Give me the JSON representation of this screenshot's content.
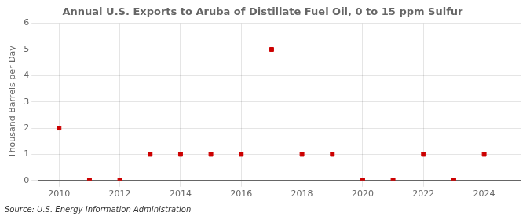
{
  "chart_data": {
    "type": "scatter",
    "title": "Annual U.S. Exports to Aruba of Distillate Fuel Oil, 0 to 15 ppm Sulfur",
    "ylabel": "Thousand Barrels per Day",
    "source": "Source: U.S. Energy Information Administration",
    "x": [
      2010,
      2011,
      2012,
      2013,
      2014,
      2015,
      2016,
      2017,
      2018,
      2019,
      2020,
      2021,
      2022,
      2023,
      2024
    ],
    "values": [
      2,
      0.02,
      0.02,
      1,
      1,
      1,
      1,
      5,
      1,
      1,
      0.02,
      0.02,
      1,
      0.02,
      1
    ],
    "color": "#cc0000",
    "marker": "square",
    "xlim": [
      2009.3,
      2025.2
    ],
    "xticks": [
      2010,
      2012,
      2014,
      2016,
      2018,
      2020,
      2022,
      2024
    ],
    "ylim": [
      0,
      6
    ],
    "yticks": [
      0,
      1,
      2,
      3,
      4,
      5,
      6
    ],
    "grid": true
  }
}
